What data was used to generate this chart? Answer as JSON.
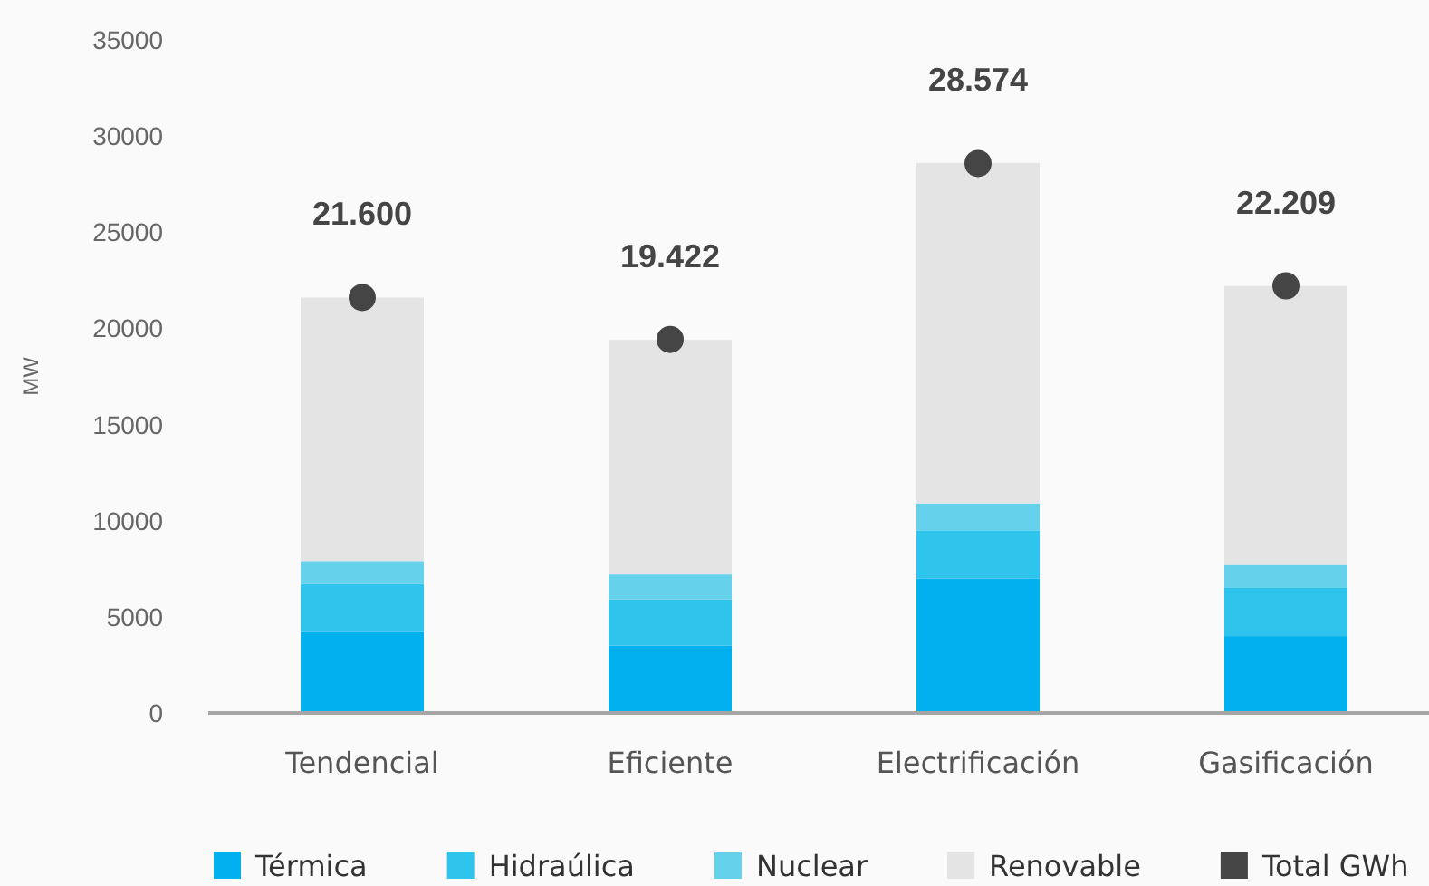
{
  "chart_data": {
    "type": "bar",
    "stacked": true,
    "ylabel": "MW",
    "categories": [
      "Tendencial",
      "Eficiente",
      "Electrificación",
      "Gasificación"
    ],
    "ylim": [
      0,
      35000
    ],
    "yticks": [
      0,
      5000,
      10000,
      15000,
      20000,
      25000,
      30000,
      35000
    ],
    "legend": "bottom",
    "series": [
      {
        "name": "Térmica",
        "color": "#00b0ef",
        "values": [
          4200,
          3500,
          7000,
          4000
        ]
      },
      {
        "name": "Hidraúlica",
        "color": "#2ec4ec",
        "values": [
          2500,
          2400,
          2500,
          2500
        ]
      },
      {
        "name": "Nuclear",
        "color": "#66d1ea",
        "values": [
          1200,
          1300,
          1400,
          1200
        ]
      },
      {
        "name": "Renovable",
        "color": "#e4e4e4",
        "values": [
          13700,
          12200,
          17700,
          14500
        ]
      },
      {
        "name": "Total GWh",
        "type": "scatter",
        "marker": "circle",
        "color": "#454545",
        "values": [
          21600,
          19422,
          28574,
          22209
        ],
        "value_labels": [
          "21.600",
          "19.422",
          "28.574",
          "22.209"
        ]
      }
    ]
  }
}
